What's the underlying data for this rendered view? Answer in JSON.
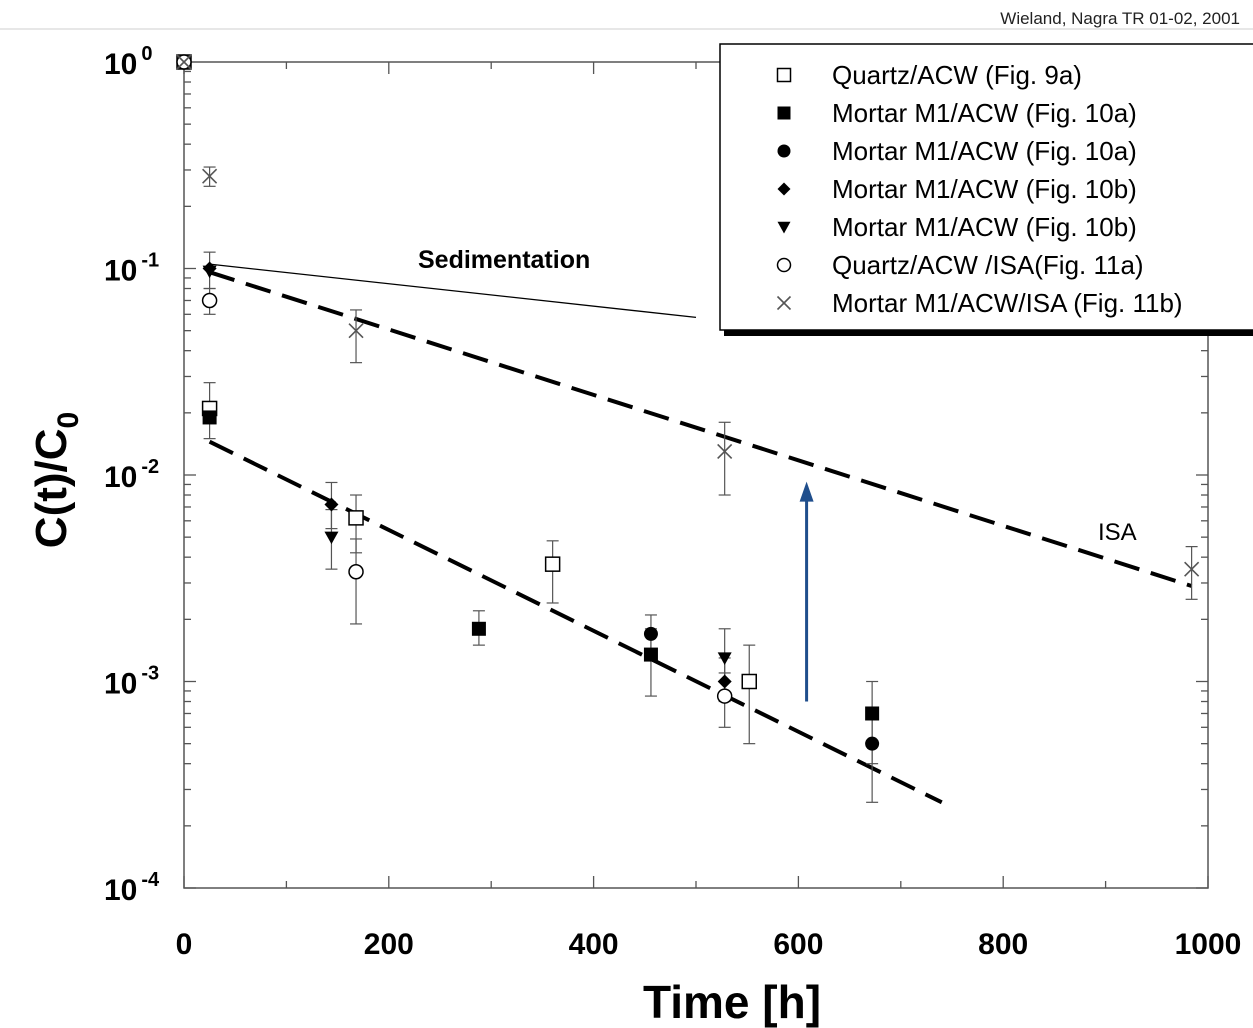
{
  "citation": "Wieland, Nagra TR 01-02, 2001",
  "chart_data": {
    "type": "scatter",
    "xlabel": "Time [h]",
    "ylabel": "C(t)/C",
    "ylabel_subscript": "0",
    "xlim": [
      0,
      1000
    ],
    "ylim": [
      0.0001,
      1
    ],
    "yscale": "log",
    "x_ticks": [
      "0",
      "200",
      "400",
      "600",
      "800",
      "1000"
    ],
    "y_ticks": [
      {
        "base": "10",
        "exp": "0",
        "value": 1
      },
      {
        "base": "10",
        "exp": "-1",
        "value": 0.1
      },
      {
        "base": "10",
        "exp": "-2",
        "value": 0.01
      },
      {
        "base": "10",
        "exp": "-3",
        "value": 0.001
      },
      {
        "base": "10",
        "exp": "-4",
        "value": 0.0001
      }
    ],
    "legend_position": "top-right",
    "series": [
      {
        "name": "Quartz/ACW (Fig. 9a)",
        "marker": "open-square",
        "color": "#000000",
        "points": [
          {
            "x": 0,
            "y": 1.0
          },
          {
            "x": 25,
            "y": 0.021,
            "err": [
              0.015,
              0.028
            ]
          },
          {
            "x": 168,
            "y": 0.0062,
            "err": [
              0.0042,
              0.008
            ]
          },
          {
            "x": 360,
            "y": 0.0037,
            "err": [
              0.0024,
              0.0048
            ]
          },
          {
            "x": 552,
            "y": 0.001,
            "err": [
              0.0005,
              0.0015
            ]
          }
        ]
      },
      {
        "name": "Mortar M1/ACW (Fig. 10a)",
        "marker": "filled-square",
        "color": "#000000",
        "points": [
          {
            "x": 25,
            "y": 0.019
          },
          {
            "x": 288,
            "y": 0.0018,
            "err": [
              0.0015,
              0.0022
            ]
          },
          {
            "x": 456,
            "y": 0.00135,
            "err": [
              0.00085,
              0.0018
            ]
          },
          {
            "x": 672,
            "y": 0.0007,
            "err": [
              0.0004,
              0.001
            ]
          }
        ]
      },
      {
        "name": "Mortar M1/ACW (Fig. 10a)",
        "marker": "filled-circle",
        "color": "#000000",
        "points": [
          {
            "x": 456,
            "y": 0.0017,
            "err": [
              0.0013,
              0.0021
            ]
          },
          {
            "x": 672,
            "y": 0.0005,
            "err": [
              0.00026,
              0.00075
            ]
          }
        ]
      },
      {
        "name": "Mortar M1/ACW (Fig. 10b)",
        "marker": "filled-diamond",
        "color": "#000000",
        "points": [
          {
            "x": 25,
            "y": 0.1,
            "err": [
              0.08,
              0.12
            ]
          },
          {
            "x": 144,
            "y": 0.0072,
            "err": [
              0.0055,
              0.0092
            ]
          },
          {
            "x": 528,
            "y": 0.001,
            "err": [
              0.0008,
              0.0013
            ]
          }
        ]
      },
      {
        "name": "Mortar M1/ACW (Fig. 10b)",
        "marker": "filled-triangle-down",
        "color": "#000000",
        "points": [
          {
            "x": 25,
            "y": 0.097
          },
          {
            "x": 144,
            "y": 0.005,
            "err": [
              0.0035,
              0.0068
            ]
          },
          {
            "x": 528,
            "y": 0.0013,
            "err": [
              0.001,
              0.0018
            ]
          }
        ]
      },
      {
        "name": "Quartz/ACW /ISA(Fig. 11a)",
        "marker": "open-circle",
        "color": "#000000",
        "points": [
          {
            "x": 0,
            "y": 1.0
          },
          {
            "x": 25,
            "y": 0.07,
            "err": [
              0.06,
              0.08
            ]
          },
          {
            "x": 168,
            "y": 0.0034,
            "err": [
              0.0019,
              0.0049
            ]
          },
          {
            "x": 528,
            "y": 0.00085,
            "err": [
              0.0006,
              0.0011
            ]
          }
        ]
      },
      {
        "name": "Mortar M1/ACW/ISA (Fig. 11b)",
        "marker": "cross",
        "color": "#555555",
        "points": [
          {
            "x": 0,
            "y": 1.0
          },
          {
            "x": 25,
            "y": 0.28,
            "err": [
              0.25,
              0.31
            ]
          },
          {
            "x": 168,
            "y": 0.05,
            "err": [
              0.035,
              0.063
            ]
          },
          {
            "x": 528,
            "y": 0.013,
            "err": [
              0.008,
              0.018
            ]
          },
          {
            "x": 984,
            "y": 0.0035,
            "err": [
              0.0025,
              0.0045
            ]
          }
        ]
      }
    ],
    "lines": [
      {
        "label": "Sedimentation",
        "style": "solid",
        "points": [
          [
            25,
            0.105
          ],
          [
            500,
            0.058
          ]
        ]
      },
      {
        "label": "ISA",
        "style": "dashed",
        "points": [
          [
            25,
            0.096
          ],
          [
            984,
            0.0029
          ]
        ]
      },
      {
        "label": "",
        "style": "dashed",
        "points": [
          [
            25,
            0.0145
          ],
          [
            740,
            0.00026
          ]
        ]
      }
    ],
    "arrow": {
      "color": "#1f4e8c",
      "from": [
        608,
        0.0008
      ],
      "to": [
        608,
        0.0085
      ]
    }
  }
}
